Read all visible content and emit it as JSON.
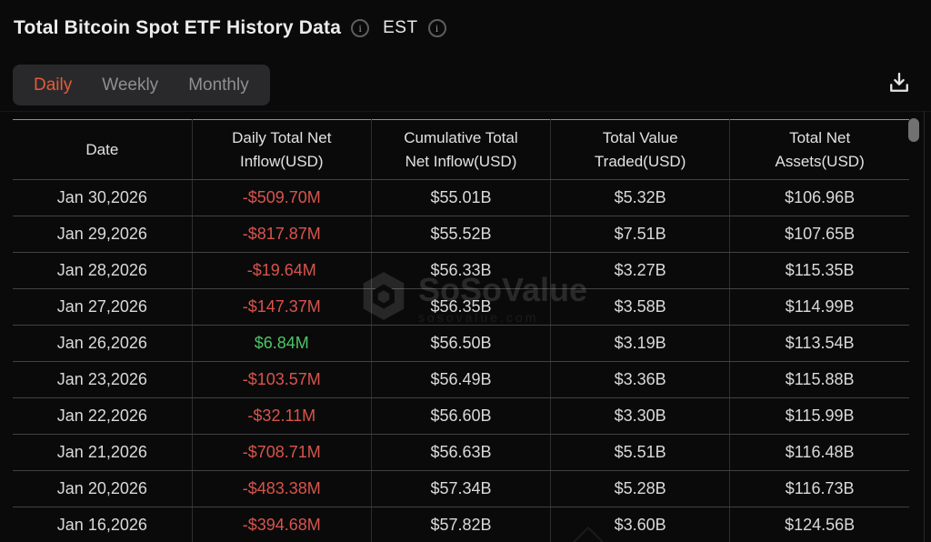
{
  "header": {
    "title": "Total Bitcoin Spot ETF History Data",
    "timezone": "EST"
  },
  "tabs": [
    {
      "label": "Daily",
      "active": true
    },
    {
      "label": "Weekly",
      "active": false
    },
    {
      "label": "Monthly",
      "active": false
    }
  ],
  "toolbar": {
    "download_icon": "download-tray-arrow"
  },
  "icons": {
    "info": "i"
  },
  "table": {
    "columns": [
      "Date",
      "Daily Total Net Inflow(USD)",
      "Cumulative Total Net Inflow(USD)",
      "Total Value Traded(USD)",
      "Total Net Assets(USD)"
    ],
    "rows": [
      {
        "date": "Jan 30,2026",
        "daily_net_inflow": "-$509.70M",
        "cumulative_net_inflow": "$55.01B",
        "total_value_traded": "$5.32B",
        "total_net_assets": "$106.96B"
      },
      {
        "date": "Jan 29,2026",
        "daily_net_inflow": "-$817.87M",
        "cumulative_net_inflow": "$55.52B",
        "total_value_traded": "$7.51B",
        "total_net_assets": "$107.65B"
      },
      {
        "date": "Jan 28,2026",
        "daily_net_inflow": "-$19.64M",
        "cumulative_net_inflow": "$56.33B",
        "total_value_traded": "$3.27B",
        "total_net_assets": "$115.35B"
      },
      {
        "date": "Jan 27,2026",
        "daily_net_inflow": "-$147.37M",
        "cumulative_net_inflow": "$56.35B",
        "total_value_traded": "$3.58B",
        "total_net_assets": "$114.99B"
      },
      {
        "date": "Jan 26,2026",
        "daily_net_inflow": "$6.84M",
        "cumulative_net_inflow": "$56.50B",
        "total_value_traded": "$3.19B",
        "total_net_assets": "$113.54B"
      },
      {
        "date": "Jan 23,2026",
        "daily_net_inflow": "-$103.57M",
        "cumulative_net_inflow": "$56.49B",
        "total_value_traded": "$3.36B",
        "total_net_assets": "$115.88B"
      },
      {
        "date": "Jan 22,2026",
        "daily_net_inflow": "-$32.11M",
        "cumulative_net_inflow": "$56.60B",
        "total_value_traded": "$3.30B",
        "total_net_assets": "$115.99B"
      },
      {
        "date": "Jan 21,2026",
        "daily_net_inflow": "-$708.71M",
        "cumulative_net_inflow": "$56.63B",
        "total_value_traded": "$5.51B",
        "total_net_assets": "$116.48B"
      },
      {
        "date": "Jan 20,2026",
        "daily_net_inflow": "-$483.38M",
        "cumulative_net_inflow": "$57.34B",
        "total_value_traded": "$5.28B",
        "total_net_assets": "$116.73B"
      },
      {
        "date": "Jan 16,2026",
        "daily_net_inflow": "-$394.68M",
        "cumulative_net_inflow": "$57.82B",
        "total_value_traded": "$3.60B",
        "total_net_assets": "$124.56B"
      }
    ]
  },
  "watermark": {
    "brand": "SoSoValue",
    "domain": "sosovalue.com"
  },
  "colors": {
    "background": "#0a0a0b",
    "accent_active_tab": "#e25c3c",
    "negative_value": "#d8544b",
    "positive_value": "#4ec465",
    "text_primary": "#ececec",
    "text_muted": "#8f8f8f"
  }
}
